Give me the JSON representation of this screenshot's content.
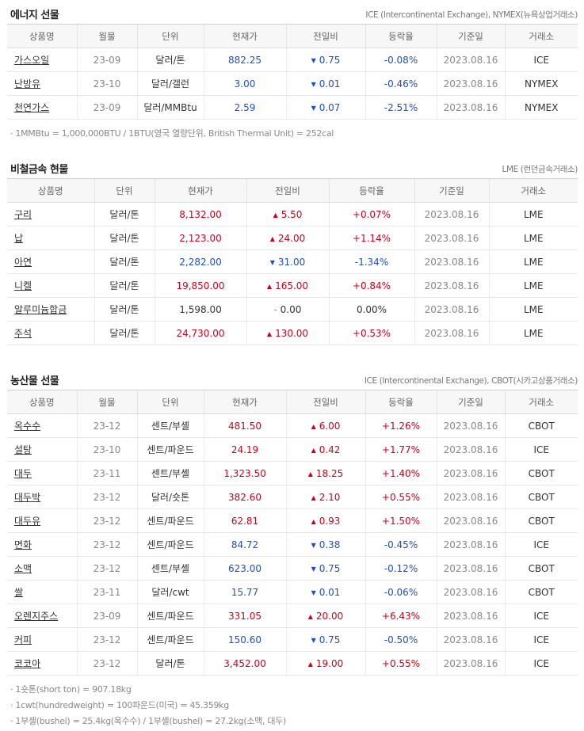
{
  "energy": {
    "title": "에너지 선물",
    "source": "ICE (Intercontinental Exchange), NYMEX(뉴욕상업거래소)",
    "headers": [
      "상품명",
      "월물",
      "단위",
      "현재가",
      "전일비",
      "등락율",
      "기준일",
      "거래소"
    ],
    "rows": [
      {
        "name": "가스오일",
        "month": "23-09",
        "unit": "달러/톤",
        "price": "882.25",
        "dir": "down",
        "change": "0.75",
        "rate": "-0.08%",
        "date": "2023.08.16",
        "exchange": "ICE"
      },
      {
        "name": "난방유",
        "month": "23-10",
        "unit": "달러/갤런",
        "price": "3.00",
        "dir": "down",
        "change": "0.01",
        "rate": "-0.46%",
        "date": "2023.08.16",
        "exchange": "NYMEX"
      },
      {
        "name": "천연가스",
        "month": "23-09",
        "unit": "달러/MMBtu",
        "price": "2.59",
        "dir": "down",
        "change": "0.07",
        "rate": "-2.51%",
        "date": "2023.08.16",
        "exchange": "NYMEX"
      }
    ],
    "notes": [
      "1MMBtu = 1,000,000BTU / 1BTU(영국 열량단위, British Thermal Unit) = 252cal"
    ]
  },
  "metals": {
    "title": "비철금속 현물",
    "source": "LME (런던금속거래소)",
    "headers": [
      "상품명",
      "단위",
      "현재가",
      "전일비",
      "등락율",
      "기준일",
      "거래소"
    ],
    "rows": [
      {
        "name": "구리",
        "unit": "달러/톤",
        "price": "8,132.00",
        "dir": "up",
        "change": "5.50",
        "rate": "+0.07%",
        "date": "2023.08.16",
        "exchange": "LME"
      },
      {
        "name": "납",
        "unit": "달러/톤",
        "price": "2,123.00",
        "dir": "up",
        "change": "24.00",
        "rate": "+1.14%",
        "date": "2023.08.16",
        "exchange": "LME"
      },
      {
        "name": "아연",
        "unit": "달러/톤",
        "price": "2,282.00",
        "dir": "down",
        "change": "31.00",
        "rate": "-1.34%",
        "date": "2023.08.16",
        "exchange": "LME"
      },
      {
        "name": "니켈",
        "unit": "달러/톤",
        "price": "19,850.00",
        "dir": "up",
        "change": "165.00",
        "rate": "+0.84%",
        "date": "2023.08.16",
        "exchange": "LME"
      },
      {
        "name": "알루미늄합금",
        "unit": "달러/톤",
        "price": "1,598.00",
        "dir": "flat",
        "change": "0.00",
        "rate": "0.00%",
        "date": "2023.08.16",
        "exchange": "LME"
      },
      {
        "name": "주석",
        "unit": "달러/톤",
        "price": "24,730.00",
        "dir": "up",
        "change": "130.00",
        "rate": "+0.53%",
        "date": "2023.08.16",
        "exchange": "LME"
      }
    ]
  },
  "agri": {
    "title": "농산물 선물",
    "source": "ICE (Intercontinental Exchange), CBOT(시카고상품거래소)",
    "headers": [
      "상품명",
      "월물",
      "단위",
      "현재가",
      "전일비",
      "등락율",
      "기준일",
      "거래소"
    ],
    "rows": [
      {
        "name": "옥수수",
        "month": "23-12",
        "unit": "센트/부셸",
        "price": "481.50",
        "dir": "up",
        "change": "6.00",
        "rate": "+1.26%",
        "date": "2023.08.16",
        "exchange": "CBOT"
      },
      {
        "name": "설탕",
        "month": "23-10",
        "unit": "센트/파운드",
        "price": "24.19",
        "dir": "up",
        "change": "0.42",
        "rate": "+1.77%",
        "date": "2023.08.16",
        "exchange": "ICE"
      },
      {
        "name": "대두",
        "month": "23-11",
        "unit": "센트/부셸",
        "price": "1,323.50",
        "dir": "up",
        "change": "18.25",
        "rate": "+1.40%",
        "date": "2023.08.16",
        "exchange": "CBOT"
      },
      {
        "name": "대두박",
        "month": "23-12",
        "unit": "달러/숏톤",
        "price": "382.60",
        "dir": "up",
        "change": "2.10",
        "rate": "+0.55%",
        "date": "2023.08.16",
        "exchange": "CBOT"
      },
      {
        "name": "대두유",
        "month": "23-12",
        "unit": "센트/파운드",
        "price": "62.81",
        "dir": "up",
        "change": "0.93",
        "rate": "+1.50%",
        "date": "2023.08.16",
        "exchange": "CBOT"
      },
      {
        "name": "면화",
        "month": "23-12",
        "unit": "센트/파운드",
        "price": "84.72",
        "dir": "down",
        "change": "0.38",
        "rate": "-0.45%",
        "date": "2023.08.16",
        "exchange": "ICE"
      },
      {
        "name": "소맥",
        "month": "23-12",
        "unit": "센트/부셸",
        "price": "623.00",
        "dir": "down",
        "change": "0.75",
        "rate": "-0.12%",
        "date": "2023.08.16",
        "exchange": "CBOT"
      },
      {
        "name": "쌀",
        "month": "23-11",
        "unit": "달러/cwt",
        "price": "15.77",
        "dir": "down",
        "change": "0.01",
        "rate": "-0.06%",
        "date": "2023.08.16",
        "exchange": "CBOT"
      },
      {
        "name": "오렌지주스",
        "month": "23-09",
        "unit": "센트/파운드",
        "price": "331.05",
        "dir": "up",
        "change": "20.00",
        "rate": "+6.43%",
        "date": "2023.08.16",
        "exchange": "ICE"
      },
      {
        "name": "커피",
        "month": "23-12",
        "unit": "센트/파운드",
        "price": "150.60",
        "dir": "down",
        "change": "0.75",
        "rate": "-0.50%",
        "date": "2023.08.16",
        "exchange": "ICE"
      },
      {
        "name": "코코아",
        "month": "23-12",
        "unit": "달러/톤",
        "price": "3,452.00",
        "dir": "up",
        "change": "19.00",
        "rate": "+0.55%",
        "date": "2023.08.16",
        "exchange": "ICE"
      }
    ],
    "notes": [
      "1숏톤(short ton) = 907.18kg",
      "1cwt(hundredweight) = 100파운드(미국) = 45.359kg",
      "1부셸(bushel) = 25.4kg(옥수수) / 1부셸(bushel) = 27.2kg(소맥, 대두)"
    ]
  },
  "symbols": {
    "up": "▲",
    "down": "▼",
    "flat": "–"
  },
  "colors": {
    "up": "#d0011b",
    "down": "#1e4fc8",
    "flat": "#333333"
  }
}
